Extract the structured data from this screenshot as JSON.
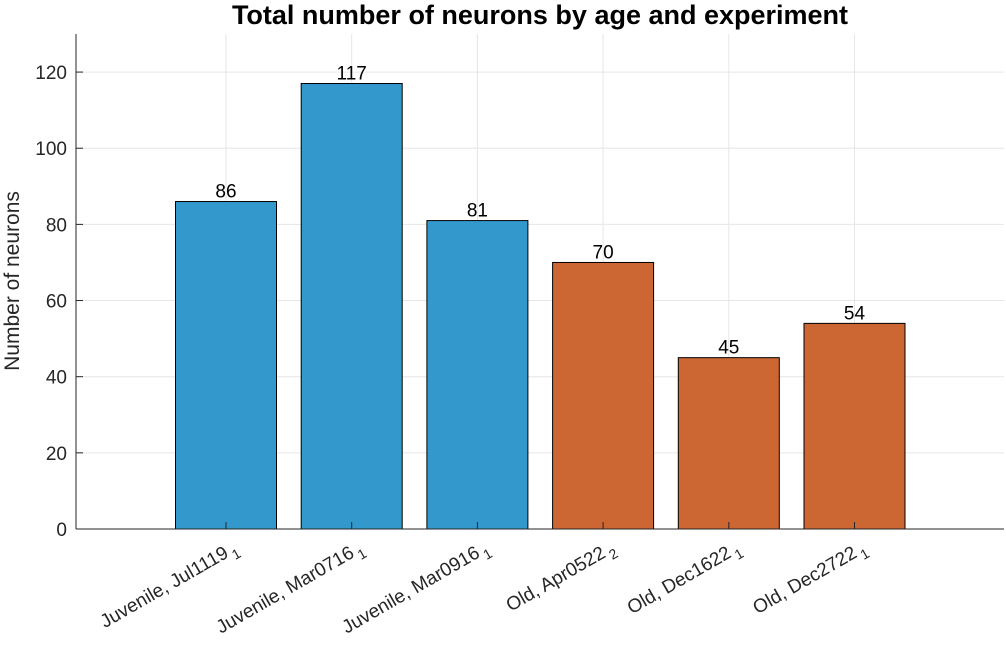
{
  "chart_data": {
    "type": "bar",
    "title": "Total number of neurons by age and experiment",
    "xlabel": "",
    "ylabel": "Number of neurons",
    "categories": [
      {
        "label": "Juvenile, Jul1119",
        "subscript": "1",
        "group": "Juvenile"
      },
      {
        "label": "Juvenile, Mar0716",
        "subscript": "1",
        "group": "Juvenile"
      },
      {
        "label": "Juvenile, Mar0916",
        "subscript": "1",
        "group": "Juvenile"
      },
      {
        "label": "Old, Apr0522",
        "subscript": "2",
        "group": "Old"
      },
      {
        "label": "Old, Dec1622",
        "subscript": "1",
        "group": "Old"
      },
      {
        "label": "Old, Dec2722",
        "subscript": "1",
        "group": "Old"
      }
    ],
    "values": [
      86,
      117,
      81,
      70,
      45,
      54
    ],
    "data_labels": [
      "86",
      "117",
      "81",
      "70",
      "45",
      "54"
    ],
    "ylim": [
      0,
      130
    ],
    "yticks": [
      0,
      20,
      40,
      60,
      80,
      100,
      120
    ],
    "grid": true,
    "legend": "none",
    "colors": {
      "Juvenile": "#3399cc",
      "Old": "#cc6633",
      "bar_edge": "#000000",
      "grid": "#e6e6e6",
      "axis": "#262626"
    }
  }
}
